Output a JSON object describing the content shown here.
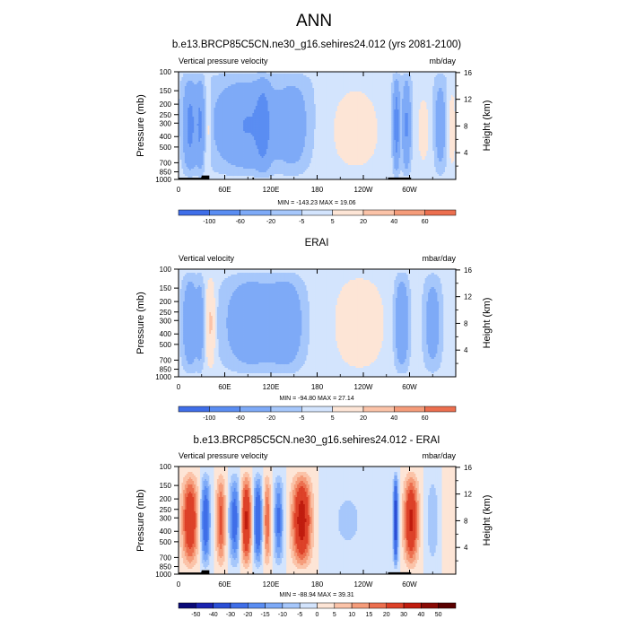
{
  "figure_title": "ANN",
  "chart_data": [
    {
      "type": "heatmap",
      "panel": "model",
      "title": "b.e13.BRCP85C5CN.ne30_g16.sehires24.012 (yrs 2081-2100)",
      "left_label": "Vertical pressure velocity",
      "right_label": "mb/day",
      "ylabel": "Pressure (mb)",
      "right_ylabel": "Height (km)",
      "x_ticks": [
        "0",
        "60E",
        "120E",
        "180",
        "120W",
        "60W"
      ],
      "x_tick_values": [
        0,
        60,
        120,
        180,
        240,
        300
      ],
      "xlim": [
        0,
        360
      ],
      "p_ticks": [
        100,
        150,
        200,
        250,
        300,
        400,
        500,
        700,
        850,
        1000
      ],
      "h_ticks": [
        4,
        8,
        12,
        16
      ],
      "stats": "MIN = -143.23   MAX = 19.06",
      "colorbar_levels": [
        "-100",
        "-60",
        "-20",
        "-5",
        "5",
        "20",
        "40",
        "60"
      ],
      "colorbar_colors": [
        "#0a0a78",
        "#1a23b0",
        "#2a4fd6",
        "#3f6ee8",
        "#5a8df2",
        "#7eaaf7",
        "#a6c7fb",
        "#d3e4fd",
        "#fde5d6",
        "#fbc3a8",
        "#f59c7a",
        "#ec6f4f",
        "#dd4128",
        "#c01c0e",
        "#8a0a05",
        "#5a0000"
      ],
      "scale": 1.0,
      "orographic": "model"
    },
    {
      "type": "heatmap",
      "panel": "obs",
      "title": "ERAI",
      "left_label": "Vertical velocity",
      "right_label": "mbar/day",
      "ylabel": "Pressure (mb)",
      "right_ylabel": "Height (km)",
      "x_ticks": [
        "0",
        "60E",
        "120E",
        "180",
        "120W",
        "60W"
      ],
      "x_tick_values": [
        0,
        60,
        120,
        180,
        240,
        300
      ],
      "xlim": [
        0,
        360
      ],
      "p_ticks": [
        100,
        150,
        200,
        250,
        300,
        400,
        500,
        700,
        850,
        1000
      ],
      "h_ticks": [
        4,
        8,
        12,
        16
      ],
      "stats": "MIN = -94.80   MAX = 27.14",
      "colorbar_levels": [
        "-100",
        "-60",
        "-20",
        "-5",
        "5",
        "20",
        "40",
        "60"
      ],
      "colorbar_colors": [
        "#0a0a78",
        "#1a23b0",
        "#2a4fd6",
        "#3f6ee8",
        "#5a8df2",
        "#7eaaf7",
        "#a6c7fb",
        "#d3e4fd",
        "#fde5d6",
        "#fbc3a8",
        "#f59c7a",
        "#ec6f4f",
        "#dd4128",
        "#c01c0e",
        "#8a0a05",
        "#5a0000"
      ],
      "scale": 0.7,
      "orographic": "none"
    },
    {
      "type": "heatmap",
      "panel": "diff",
      "title": "b.e13.BRCP85C5CN.ne30_g16.sehires24.012 - ERAI",
      "left_label": "Vertical pressure velocity",
      "right_label": "mbar/day",
      "ylabel": "Pressure (mb)",
      "right_ylabel": "Height (km)",
      "x_ticks": [
        "0",
        "60E",
        "120E",
        "180",
        "120W",
        "60W"
      ],
      "x_tick_values": [
        0,
        60,
        120,
        180,
        240,
        300
      ],
      "xlim": [
        0,
        360
      ],
      "p_ticks": [
        100,
        150,
        200,
        250,
        300,
        400,
        500,
        700,
        850,
        1000
      ],
      "h_ticks": [
        4,
        8,
        12,
        16
      ],
      "stats": "MIN = -88.94   MAX = 39.31",
      "colorbar_levels": [
        "-50",
        "-40",
        "-30",
        "-20",
        "-15",
        "-10",
        "-5",
        "0",
        "5",
        "10",
        "15",
        "20",
        "30",
        "40",
        "50"
      ],
      "colorbar_colors": [
        "#0a0a78",
        "#1a23b0",
        "#2a4fd6",
        "#3f6ee8",
        "#5a8df2",
        "#7eaaf7",
        "#a6c7fb",
        "#d3e4fd",
        "#fde5d6",
        "#fbc3a8",
        "#f59c7a",
        "#ec6f4f",
        "#dd4128",
        "#c01c0e",
        "#8a0a05",
        "#5a0000"
      ],
      "scale": 1.0,
      "orographic": "model"
    }
  ]
}
